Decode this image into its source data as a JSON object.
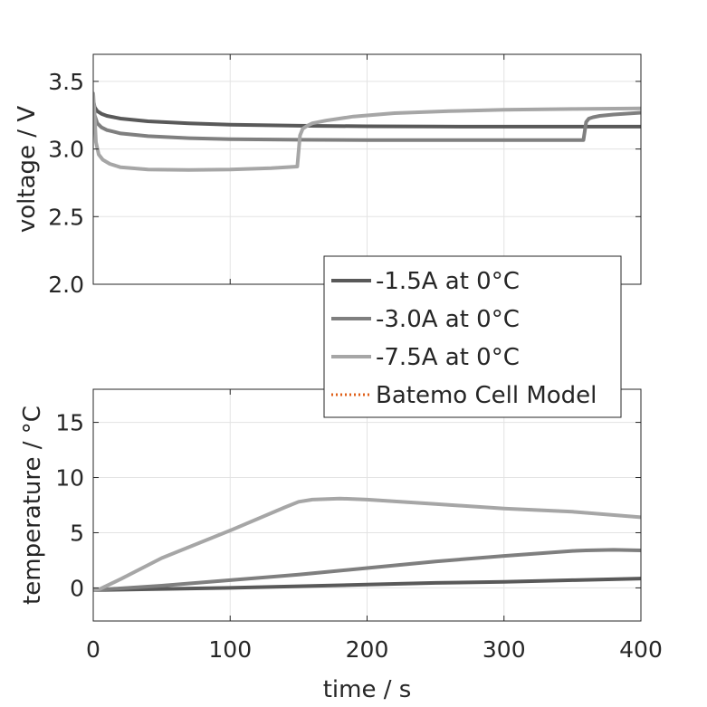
{
  "chart_data": [
    {
      "type": "line",
      "ylabel": "voltage / V",
      "xlim": [
        0,
        400
      ],
      "ylim": [
        2.0,
        3.7
      ],
      "xticks": [
        0,
        100,
        200,
        300,
        400
      ],
      "yticks": [
        2.0,
        2.5,
        3.0,
        3.5
      ],
      "ytick_labels": [
        "2.0",
        "2.5",
        "3.0",
        "3.5"
      ],
      "grid": true,
      "series": [
        {
          "name": "-1.5A at 0°C",
          "color": "#595959",
          "x": [
            0,
            1,
            3,
            6,
            10,
            20,
            40,
            70,
            100,
            150,
            200,
            250,
            300,
            350,
            400
          ],
          "y": [
            3.36,
            3.31,
            3.28,
            3.26,
            3.245,
            3.225,
            3.205,
            3.19,
            3.18,
            3.172,
            3.168,
            3.166,
            3.165,
            3.165,
            3.165
          ]
        },
        {
          "name": "-3.0A at 0°C",
          "color": "#7f7f7f",
          "x": [
            0,
            1,
            3,
            6,
            10,
            20,
            40,
            70,
            100,
            150,
            200,
            250,
            300,
            358,
            360,
            362,
            365,
            370,
            380,
            400
          ],
          "y": [
            3.36,
            3.25,
            3.19,
            3.16,
            3.14,
            3.115,
            3.095,
            3.08,
            3.072,
            3.068,
            3.066,
            3.066,
            3.066,
            3.066,
            3.2,
            3.225,
            3.235,
            3.245,
            3.255,
            3.268
          ]
        },
        {
          "name": "-7.5A at 0°C",
          "color": "#a6a6a6",
          "x": [
            0,
            1,
            2,
            4,
            7,
            12,
            20,
            40,
            70,
            100,
            130,
            149,
            151,
            153,
            156,
            160,
            170,
            190,
            220,
            260,
            300,
            350,
            400
          ],
          "y": [
            3.41,
            3.25,
            3.05,
            2.96,
            2.92,
            2.89,
            2.865,
            2.848,
            2.845,
            2.848,
            2.858,
            2.87,
            3.1,
            3.15,
            3.17,
            3.19,
            3.21,
            3.24,
            3.265,
            3.28,
            3.29,
            3.296,
            3.3
          ]
        },
        {
          "name": "Batemo Cell Model",
          "color": "#e0601a",
          "dashed": true,
          "x": [],
          "y": []
        }
      ]
    },
    {
      "type": "line",
      "ylabel": "temperature / °C",
      "xlabel": "time / s",
      "xlim": [
        0,
        400
      ],
      "ylim": [
        -3,
        18
      ],
      "xticks": [
        0,
        100,
        200,
        300,
        400
      ],
      "yticks": [
        0,
        5,
        10,
        15
      ],
      "ytick_labels": [
        "0",
        "5",
        "10",
        "15"
      ],
      "grid": true,
      "series": [
        {
          "name": "-1.5A at 0°C",
          "color": "#595959",
          "x": [
            0,
            50,
            100,
            150,
            200,
            250,
            300,
            350,
            400
          ],
          "y": [
            -0.2,
            -0.1,
            0.0,
            0.15,
            0.3,
            0.45,
            0.55,
            0.7,
            0.85
          ]
        },
        {
          "name": "-3.0A at 0°C",
          "color": "#7f7f7f",
          "x": [
            0,
            50,
            100,
            150,
            200,
            250,
            300,
            350,
            360,
            380,
            400
          ],
          "y": [
            -0.2,
            0.2,
            0.7,
            1.2,
            1.8,
            2.4,
            2.9,
            3.35,
            3.4,
            3.45,
            3.4
          ]
        },
        {
          "name": "-7.5A at 0°C",
          "color": "#a6a6a6",
          "x": [
            0,
            5,
            20,
            50,
            100,
            140,
            150,
            160,
            180,
            200,
            250,
            300,
            350,
            400
          ],
          "y": [
            -0.2,
            -0.1,
            0.8,
            2.7,
            5.2,
            7.3,
            7.8,
            8.0,
            8.1,
            8.0,
            7.6,
            7.2,
            6.9,
            6.4
          ]
        },
        {
          "name": "Batemo Cell Model",
          "color": "#e0601a",
          "dashed": true,
          "x": [],
          "y": []
        }
      ]
    }
  ],
  "legend": {
    "placement": "center-right, between axes",
    "entries": [
      "-1.5A at 0°C",
      "-3.0A at 0°C",
      "-7.5A at 0°C",
      "Batemo Cell Model"
    ]
  }
}
